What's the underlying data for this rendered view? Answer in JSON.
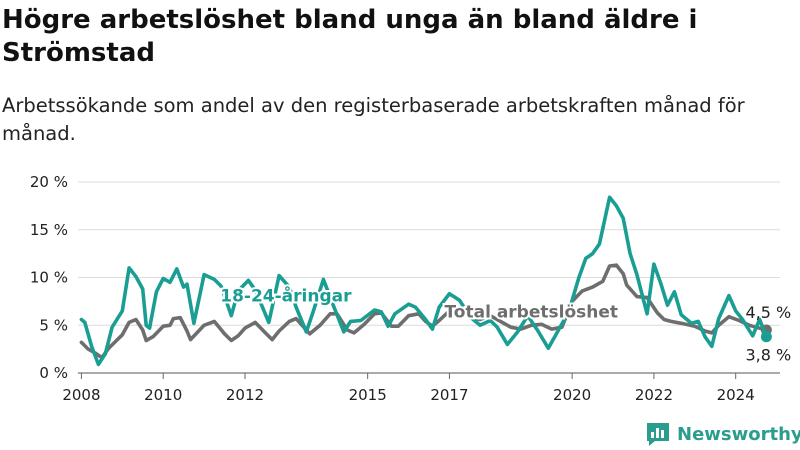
{
  "header": {
    "title": "Högre arbetslöshet bland unga än bland äldre i Strömstad",
    "subtitle": "Arbetssökande som andel av den registerbaserade arbetskraften månad för månad."
  },
  "brand": {
    "name": "Newsworthy",
    "icon": "bar-chart-logo-icon",
    "color": "#2a9d8f"
  },
  "chart_data": {
    "type": "line",
    "title": "",
    "xlabel": "",
    "ylabel": "",
    "x_unit": "month",
    "xlim": [
      "2007-12",
      "2025-02"
    ],
    "ylim": [
      0,
      20
    ],
    "y_ticks": [
      {
        "value": 0,
        "label": "0 %"
      },
      {
        "value": 5,
        "label": "5 %"
      },
      {
        "value": 10,
        "label": "10 %"
      },
      {
        "value": 15,
        "label": "15 %"
      },
      {
        "value": 20,
        "label": "20 %"
      }
    ],
    "x_ticks": [
      {
        "value": "2008-01",
        "label": "2008"
      },
      {
        "value": "2010-01",
        "label": "2010"
      },
      {
        "value": "2012-01",
        "label": "2012"
      },
      {
        "value": "2015-01",
        "label": "2015"
      },
      {
        "value": "2017-01",
        "label": "2017"
      },
      {
        "value": "2020-01",
        "label": "2020"
      },
      {
        "value": "2022-01",
        "label": "2022"
      },
      {
        "value": "2024-01",
        "label": "2024"
      }
    ],
    "grid": true,
    "series": [
      {
        "name": "Total arbetslöshet",
        "color": "#6e6e6e",
        "last_value_label": "4,5 %",
        "points": [
          [
            "2008-01",
            3.2
          ],
          [
            "2008-03",
            2.5
          ],
          [
            "2008-05",
            2.1
          ],
          [
            "2008-07",
            1.6
          ],
          [
            "2008-09",
            2.6
          ],
          [
            "2008-11",
            3.3
          ],
          [
            "2009-01",
            4.0
          ],
          [
            "2009-03",
            5.3
          ],
          [
            "2009-05",
            5.6
          ],
          [
            "2009-07",
            4.5
          ],
          [
            "2009-08",
            3.4
          ],
          [
            "2009-10",
            3.8
          ],
          [
            "2010-01",
            4.9
          ],
          [
            "2010-03",
            5.0
          ],
          [
            "2010-04",
            5.7
          ],
          [
            "2010-06",
            5.8
          ],
          [
            "2010-08",
            4.4
          ],
          [
            "2010-09",
            3.5
          ],
          [
            "2011-01",
            5.0
          ],
          [
            "2011-04",
            5.4
          ],
          [
            "2011-07",
            4.1
          ],
          [
            "2011-09",
            3.4
          ],
          [
            "2011-11",
            3.9
          ],
          [
            "2012-01",
            4.7
          ],
          [
            "2012-04",
            5.3
          ],
          [
            "2012-07",
            4.2
          ],
          [
            "2012-09",
            3.5
          ],
          [
            "2012-11",
            4.4
          ],
          [
            "2013-02",
            5.4
          ],
          [
            "2013-04",
            5.7
          ],
          [
            "2013-07",
            4.5
          ],
          [
            "2013-08",
            4.1
          ],
          [
            "2013-11",
            5.0
          ],
          [
            "2014-02",
            6.2
          ],
          [
            "2014-04",
            6.2
          ],
          [
            "2014-07",
            4.5
          ],
          [
            "2014-09",
            4.2
          ],
          [
            "2014-12",
            5.1
          ],
          [
            "2015-03",
            6.2
          ],
          [
            "2015-05",
            6.3
          ],
          [
            "2015-08",
            4.9
          ],
          [
            "2015-10",
            4.9
          ],
          [
            "2016-01",
            6.0
          ],
          [
            "2016-04",
            6.2
          ],
          [
            "2016-06",
            5.4
          ],
          [
            "2016-08",
            4.9
          ],
          [
            "2016-10",
            5.5
          ],
          [
            "2017-01",
            6.5
          ],
          [
            "2017-04",
            6.8
          ],
          [
            "2017-07",
            5.8
          ],
          [
            "2017-10",
            5.6
          ],
          [
            "2018-01",
            6.0
          ],
          [
            "2018-04",
            5.4
          ],
          [
            "2018-07",
            4.8
          ],
          [
            "2018-10",
            4.6
          ],
          [
            "2019-01",
            5.0
          ],
          [
            "2019-04",
            5.1
          ],
          [
            "2019-07",
            4.6
          ],
          [
            "2019-10",
            4.8
          ],
          [
            "2020-01",
            7.5
          ],
          [
            "2020-04",
            8.6
          ],
          [
            "2020-07",
            9.0
          ],
          [
            "2020-10",
            9.6
          ],
          [
            "2020-12",
            11.2
          ],
          [
            "2021-02",
            11.3
          ],
          [
            "2021-04",
            10.4
          ],
          [
            "2021-05",
            9.2
          ],
          [
            "2021-08",
            8.0
          ],
          [
            "2021-11",
            7.9
          ],
          [
            "2022-02",
            6.3
          ],
          [
            "2022-04",
            5.6
          ],
          [
            "2022-06",
            5.4
          ],
          [
            "2022-09",
            5.2
          ],
          [
            "2023-01",
            4.9
          ],
          [
            "2023-04",
            4.4
          ],
          [
            "2023-06",
            4.2
          ],
          [
            "2023-08",
            5.0
          ],
          [
            "2023-11",
            5.9
          ],
          [
            "2024-02",
            5.5
          ],
          [
            "2024-05",
            5.0
          ],
          [
            "2024-07",
            4.8
          ],
          [
            "2024-10",
            4.5
          ]
        ]
      },
      {
        "name": "18-24-åringar",
        "color": "#1a9e93",
        "last_value_label": "3,8 %",
        "points": [
          [
            "2008-01",
            5.6
          ],
          [
            "2008-02",
            5.3
          ],
          [
            "2008-04",
            2.8
          ],
          [
            "2008-06",
            0.9
          ],
          [
            "2008-08",
            2.0
          ],
          [
            "2008-10",
            4.8
          ],
          [
            "2009-01",
            6.5
          ],
          [
            "2009-03",
            11.0
          ],
          [
            "2009-05",
            10.1
          ],
          [
            "2009-07",
            8.8
          ],
          [
            "2009-08",
            5.0
          ],
          [
            "2009-09",
            4.7
          ],
          [
            "2009-11",
            8.5
          ],
          [
            "2010-01",
            9.9
          ],
          [
            "2010-03",
            9.5
          ],
          [
            "2010-05",
            10.9
          ],
          [
            "2010-07",
            9.0
          ],
          [
            "2010-08",
            9.3
          ],
          [
            "2010-10",
            5.2
          ],
          [
            "2011-01",
            10.3
          ],
          [
            "2011-04",
            9.8
          ],
          [
            "2011-06",
            9.1
          ],
          [
            "2011-09",
            6.0
          ],
          [
            "2011-11",
            8.6
          ],
          [
            "2012-02",
            9.7
          ],
          [
            "2012-04",
            8.7
          ],
          [
            "2012-06",
            7.0
          ],
          [
            "2012-08",
            5.3
          ],
          [
            "2012-11",
            10.2
          ],
          [
            "2013-02",
            9.0
          ],
          [
            "2013-04",
            6.9
          ],
          [
            "2013-07",
            4.3
          ],
          [
            "2013-09",
            6.4
          ],
          [
            "2013-12",
            9.8
          ],
          [
            "2014-03",
            7.0
          ],
          [
            "2014-06",
            4.3
          ],
          [
            "2014-08",
            5.4
          ],
          [
            "2014-11",
            5.5
          ],
          [
            "2015-03",
            6.6
          ],
          [
            "2015-05",
            6.4
          ],
          [
            "2015-07",
            4.9
          ],
          [
            "2015-09",
            6.2
          ],
          [
            "2016-01",
            7.2
          ],
          [
            "2016-03",
            6.9
          ],
          [
            "2016-06",
            5.6
          ],
          [
            "2016-08",
            4.6
          ],
          [
            "2016-10",
            6.9
          ],
          [
            "2017-01",
            8.3
          ],
          [
            "2017-04",
            7.6
          ],
          [
            "2017-07",
            5.9
          ],
          [
            "2017-10",
            5.0
          ],
          [
            "2018-01",
            5.5
          ],
          [
            "2018-03",
            4.8
          ],
          [
            "2018-06",
            3.0
          ],
          [
            "2018-09",
            4.3
          ],
          [
            "2018-12",
            6.0
          ],
          [
            "2019-03",
            4.4
          ],
          [
            "2019-06",
            2.6
          ],
          [
            "2019-09",
            4.5
          ],
          [
            "2019-12",
            6.4
          ],
          [
            "2020-03",
            10.0
          ],
          [
            "2020-05",
            12.0
          ],
          [
            "2020-07",
            12.5
          ],
          [
            "2020-09",
            13.5
          ],
          [
            "2020-12",
            18.4
          ],
          [
            "2021-02",
            17.5
          ],
          [
            "2021-04",
            16.2
          ],
          [
            "2021-06",
            12.5
          ],
          [
            "2021-08",
            10.3
          ],
          [
            "2021-11",
            6.2
          ],
          [
            "2022-01",
            11.4
          ],
          [
            "2022-03",
            9.4
          ],
          [
            "2022-05",
            7.1
          ],
          [
            "2022-07",
            8.5
          ],
          [
            "2022-09",
            6.1
          ],
          [
            "2022-12",
            5.2
          ],
          [
            "2023-02",
            5.4
          ],
          [
            "2023-04",
            3.8
          ],
          [
            "2023-06",
            2.8
          ],
          [
            "2023-08",
            5.7
          ],
          [
            "2023-11",
            8.1
          ],
          [
            "2024-01",
            6.5
          ],
          [
            "2024-03",
            5.6
          ],
          [
            "2024-06",
            3.9
          ],
          [
            "2024-08",
            5.6
          ],
          [
            "2024-10",
            3.8
          ]
        ]
      }
    ],
    "annotations": [
      {
        "text": "18-24-åringar",
        "series": "18-24-åringar",
        "at_x": "2013-01",
        "at_y": 7.5
      },
      {
        "text": "Total arbetslöshet",
        "series": "Total arbetslöshet",
        "at_x": "2019-01",
        "at_y": 5.8
      }
    ]
  }
}
